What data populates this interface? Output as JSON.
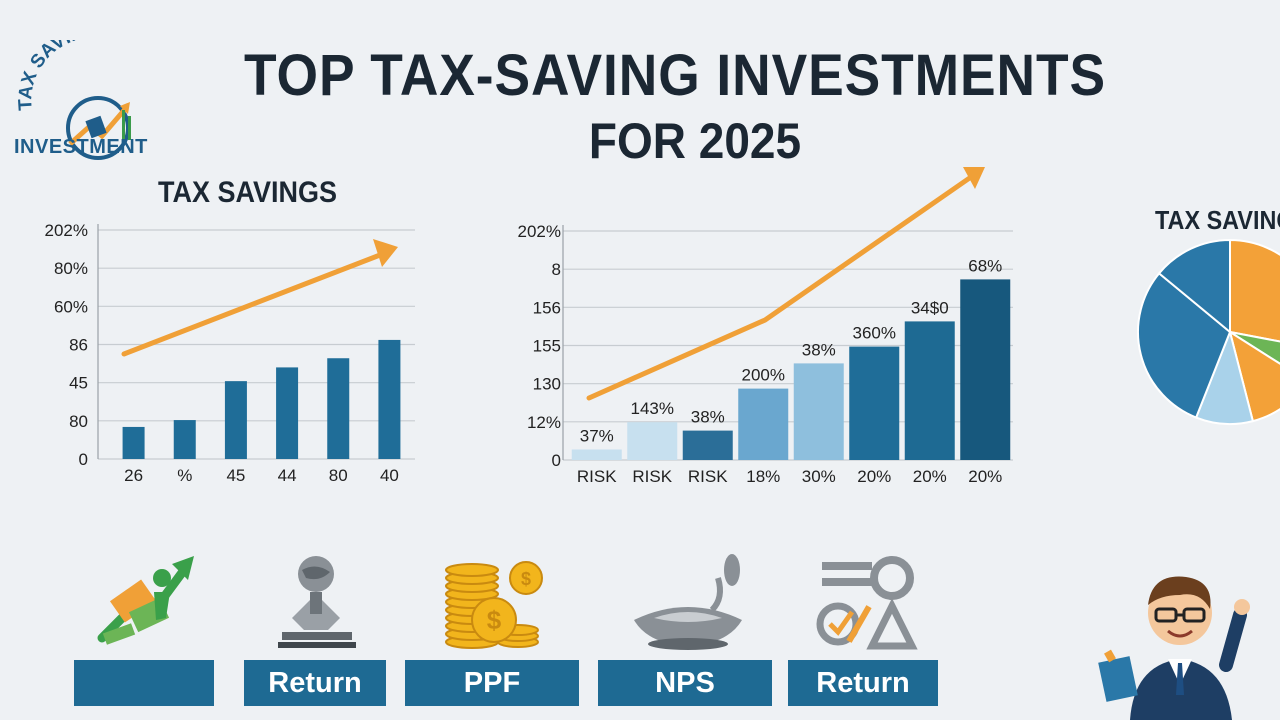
{
  "title": {
    "line1": "TOP TAX-SAVING INVESTMENTS",
    "line2": "FOR 2025"
  },
  "logo": {
    "arc_text": "TAX SAVINGS",
    "sub_text": "INVESTMENT"
  },
  "chart_data": [
    {
      "type": "bar",
      "title": "TAX SAVINGS",
      "categories": [
        "26",
        "%",
        "45",
        "44",
        "80",
        "40"
      ],
      "values": [
        28,
        34,
        68,
        80,
        88,
        104
      ],
      "y_tick_labels": [
        "202%",
        "80%",
        "60%",
        "86",
        "45",
        "80",
        "0"
      ],
      "ylim": [
        0,
        200
      ],
      "grid": true,
      "trend_arrow": true,
      "colors": {
        "bar": "#1f6d98",
        "arrow": "#f0a037"
      }
    },
    {
      "type": "bar",
      "title": "",
      "categories": [
        "RISK",
        "RISK",
        "RISK",
        "18%",
        "30%",
        "20%",
        "20%",
        "20%"
      ],
      "values": [
        10,
        36,
        28,
        68,
        92,
        108,
        132,
        172
      ],
      "data_labels": [
        "37%",
        "143%",
        "38%",
        "200%",
        "38%",
        "360%",
        "34$0",
        "68%"
      ],
      "y_tick_labels": [
        "202%",
        "8",
        "156",
        "155",
        "130",
        "12%",
        "0"
      ],
      "ylim": [
        0,
        220
      ],
      "grid": true,
      "trend_arrow": true,
      "colors": {
        "bars": [
          "#c7e0ef",
          "#c7e0ef",
          "#2b6e98",
          "#6aa7cf",
          "#8ebfdd",
          "#1f6d98",
          "#1e6a93",
          "#17587d"
        ],
        "arrow": "#f0a037"
      }
    },
    {
      "type": "pie",
      "title": "TAX SAVING",
      "values": [
        28,
        6,
        12,
        10,
        30,
        14
      ],
      "colors": [
        "#f3a138",
        "#6cb556",
        "#f3a138",
        "#a9d2ea",
        "#2a78a8",
        "#2a78a8"
      ]
    }
  ],
  "category_labels": [
    "",
    "Return",
    "PPF",
    "NPS",
    "Return"
  ],
  "icons": [
    "growth-money-icon",
    "tax-document-globe-icon",
    "gold-coins-icon",
    "savings-bowl-icon",
    "tax-calculator-icon",
    "businessman-icon"
  ],
  "colors": {
    "primary": "#1e6a93",
    "accent": "#f0a037",
    "background": "#eef1f4"
  }
}
